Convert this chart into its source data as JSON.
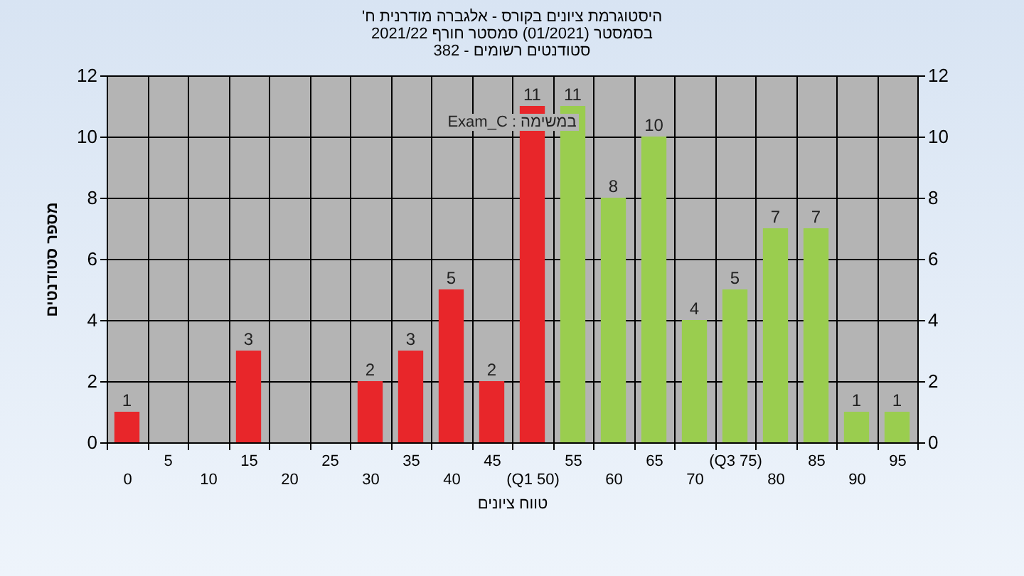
{
  "chart_data": {
    "type": "bar",
    "title": "'היסטוגרמת ציונים בקורס - אלגברה מודרנית ח\nבסמסטר  (01/2021)  סמסטר חורף 2021/22\nסטודנטים רשומים - 382",
    "xlabel": "טווח ציונים",
    "ylabel": "מספר סטודנטים",
    "annotations": [
      "במשימה : Exam_C"
    ],
    "categories": [
      "0",
      "5",
      "10",
      "15",
      "20",
      "25",
      "30",
      "35",
      "40",
      "45",
      "(Q1 50)",
      "55",
      "60",
      "65",
      "70",
      "(Q3 75)",
      "80",
      "85",
      "90",
      "95"
    ],
    "values": [
      1,
      0,
      0,
      3,
      0,
      0,
      2,
      3,
      5,
      2,
      11,
      11,
      8,
      10,
      4,
      5,
      7,
      7,
      1,
      1
    ],
    "value_labels": [
      "1",
      null,
      null,
      "3",
      null,
      null,
      "2",
      "3",
      "5",
      "2",
      "11",
      "11",
      "8",
      "10",
      "4",
      "5",
      "7",
      "7",
      "1",
      "1"
    ],
    "colors": [
      "#e8262a",
      "#e8262a",
      "#e8262a",
      "#e8262a",
      "#e8262a",
      "#e8262a",
      "#e8262a",
      "#e8262a",
      "#e8262a",
      "#e8262a",
      "#e8262a",
      "#9acd4f",
      "#9acd4f",
      "#9acd4f",
      "#9acd4f",
      "#9acd4f",
      "#9acd4f",
      "#9acd4f",
      "#9acd4f",
      "#9acd4f"
    ],
    "ylim": [
      0,
      12
    ],
    "yticks": [
      0,
      2,
      4,
      6,
      8,
      10,
      12
    ],
    "y2lim": [
      0,
      12
    ],
    "y2ticks": [
      0,
      2,
      4,
      6,
      8,
      10,
      12
    ],
    "grid": true
  }
}
